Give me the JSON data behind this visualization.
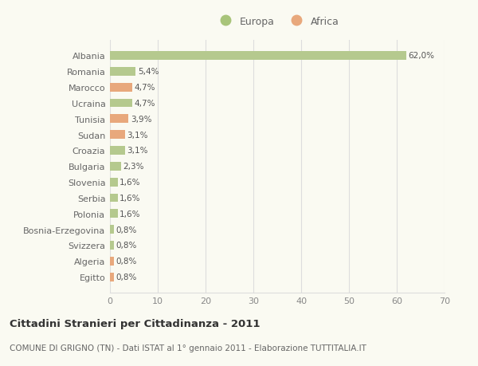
{
  "categories": [
    "Albania",
    "Romania",
    "Marocco",
    "Ucraina",
    "Tunisia",
    "Sudan",
    "Croazia",
    "Bulgaria",
    "Slovenia",
    "Serbia",
    "Polonia",
    "Bosnia-Erzegovina",
    "Svizzera",
    "Algeria",
    "Egitto"
  ],
  "values": [
    62.0,
    5.4,
    4.7,
    4.7,
    3.9,
    3.1,
    3.1,
    2.3,
    1.6,
    1.6,
    1.6,
    0.8,
    0.8,
    0.8,
    0.8
  ],
  "labels": [
    "62,0%",
    "5,4%",
    "4,7%",
    "4,7%",
    "3,9%",
    "3,1%",
    "3,1%",
    "2,3%",
    "1,6%",
    "1,6%",
    "1,6%",
    "0,8%",
    "0,8%",
    "0,8%",
    "0,8%"
  ],
  "colors": [
    "#b5c98e",
    "#b5c98e",
    "#e8a87c",
    "#b5c98e",
    "#e8a87c",
    "#e8a87c",
    "#b5c98e",
    "#b5c98e",
    "#b5c98e",
    "#b5c98e",
    "#b5c98e",
    "#b5c98e",
    "#b5c98e",
    "#e8a87c",
    "#e8a87c"
  ],
  "legend_europa_color": "#a8c47a",
  "legend_africa_color": "#e8a87c",
  "xlim": [
    0,
    70
  ],
  "xticks": [
    0,
    10,
    20,
    30,
    40,
    50,
    60,
    70
  ],
  "title": "Cittadini Stranieri per Cittadinanza - 2011",
  "subtitle": "COMUNE DI GRIGNO (TN) - Dati ISTAT al 1° gennaio 2011 - Elaborazione TUTTITALIA.IT",
  "bg_color": "#fafaf2",
  "grid_color": "#dddddd",
  "bar_height": 0.55
}
